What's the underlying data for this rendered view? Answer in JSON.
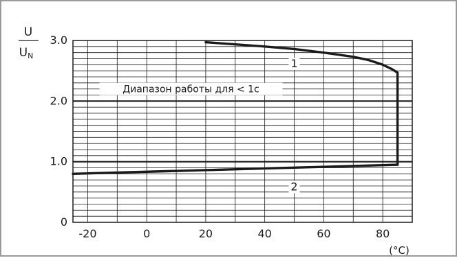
{
  "chart_data": {
    "type": "line",
    "ylabel_numerator": "U",
    "ylabel_denominator": "U",
    "ylabel_denominator_sub": "N",
    "x_unit": "(°C)",
    "xlim": [
      -25,
      90
    ],
    "ylim": [
      0,
      3.0
    ],
    "x_ticks": [
      -20,
      0,
      20,
      40,
      60,
      80
    ],
    "x_tick_labels": [
      "-20",
      "0",
      "20",
      "40",
      "60",
      "80"
    ],
    "y_ticks": [
      0,
      1.0,
      2.0,
      3.0
    ],
    "y_tick_labels": [
      "0",
      "1.0",
      "2.0",
      "3.0"
    ],
    "x_minor_step": 10,
    "y_minor_step": 0.1,
    "grid": true,
    "annotation": {
      "text": "Диапазон работы для < 1с",
      "y": 2.2
    },
    "series": [
      {
        "label": "1",
        "label_position": {
          "x": 50,
          "y": 2.58
        },
        "points": [
          [
            20,
            2.97
          ],
          [
            40,
            2.9
          ],
          [
            50,
            2.86
          ],
          [
            60,
            2.8
          ],
          [
            70,
            2.73
          ],
          [
            75,
            2.68
          ],
          [
            80,
            2.6
          ],
          [
            83,
            2.53
          ],
          [
            85,
            2.47
          ],
          [
            85,
            0.95
          ]
        ]
      },
      {
        "label": "2",
        "label_position": {
          "x": 50,
          "y": 0.55
        },
        "points": [
          [
            -25,
            0.8
          ],
          [
            85,
            0.95
          ]
        ]
      }
    ]
  }
}
